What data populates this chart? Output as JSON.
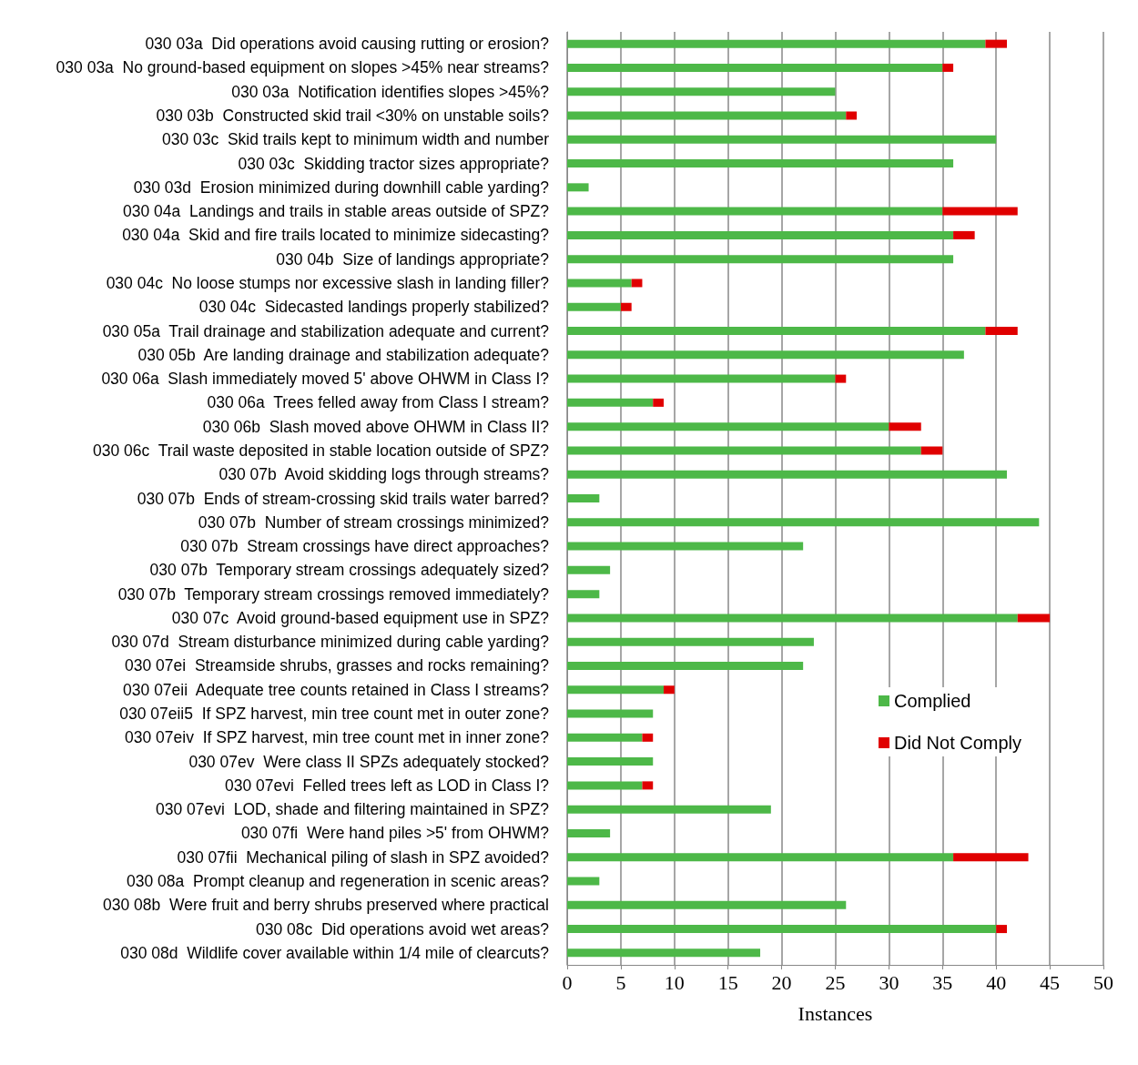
{
  "chart_data": {
    "type": "bar",
    "orientation": "horizontal",
    "stacked": true,
    "xlabel": "Instances",
    "categories": [
      "030 03a  Did operations avoid causing rutting or erosion?",
      "030 03a  No ground-based equipment on slopes >45% near streams?",
      "030 03a  Notification identifies slopes >45%?",
      "030 03b  Constructed skid trail <30% on unstable soils?",
      "030 03c  Skid trails kept to minimum width and number",
      "030 03c  Skidding tractor sizes appropriate?",
      "030 03d  Erosion minimized during downhill cable yarding?",
      "030 04a  Landings and trails in stable areas outside of SPZ?",
      "030 04a  Skid and fire trails located to minimize sidecasting?",
      "030 04b  Size of landings appropriate?",
      "030 04c  No loose stumps nor excessive slash in landing filler?",
      "030 04c  Sidecasted landings properly stabilized?",
      "030 05a  Trail drainage and stabilization adequate and current?",
      "030 05b  Are landing drainage and stabilization adequate?",
      "030 06a  Slash immediately moved 5' above OHWM in Class I?",
      "030 06a  Trees felled away from Class I stream?",
      "030 06b  Slash moved above OHWM in Class II?",
      "030 06c  Trail waste deposited in stable location outside of SPZ?",
      "030 07b  Avoid skidding logs through streams?",
      "030 07b  Ends of stream-crossing skid trails water barred?",
      "030 07b  Number of stream crossings minimized?",
      "030 07b  Stream crossings have direct approaches?",
      "030 07b  Temporary stream crossings adequately sized?",
      "030 07b  Temporary stream crossings removed immediately?",
      "030 07c  Avoid ground-based equipment use in SPZ?",
      "030 07d  Stream disturbance minimized during cable yarding?",
      "030 07ei  Streamside shrubs, grasses and rocks remaining?",
      "030 07eii  Adequate tree counts retained in Class I streams?",
      "030 07eii5  If SPZ harvest, min tree count met in outer zone?",
      "030 07eiv  If SPZ harvest, min tree count met in inner zone?",
      "030 07ev  Were class II SPZs adequately stocked?",
      "030 07evi  Felled trees left as LOD in Class I?",
      "030 07evi  LOD, shade and filtering maintained in SPZ?",
      "030 07fi  Were hand piles >5' from OHWM?",
      "030 07fii  Mechanical piling of slash in SPZ avoided?",
      "030 08a  Prompt cleanup and regeneration in scenic areas?",
      "030 08b  Were fruit and berry shrubs preserved where practical",
      "030 08c  Did operations avoid wet areas?",
      "030 08d  Wildlife cover available within 1/4 mile of clearcuts?"
    ],
    "series": [
      {
        "name": "Complied",
        "color": "#4db848",
        "values": [
          39,
          35,
          25,
          26,
          40,
          36,
          2,
          35,
          36,
          36,
          6,
          5,
          39,
          37,
          25,
          8,
          30,
          33,
          41,
          3,
          44,
          22,
          4,
          3,
          42,
          23,
          22,
          9,
          8,
          7,
          8,
          7,
          19,
          4,
          36,
          3,
          26,
          40,
          18
        ]
      },
      {
        "name": "Did Not Comply",
        "color": "#e00000",
        "values": [
          2,
          1,
          null,
          1,
          null,
          null,
          null,
          7,
          2,
          null,
          1,
          1,
          3,
          null,
          1,
          1,
          3,
          2,
          null,
          null,
          null,
          null,
          null,
          null,
          3,
          null,
          null,
          1,
          null,
          1,
          null,
          1,
          null,
          null,
          7,
          null,
          null,
          1,
          null
        ]
      }
    ],
    "xlim": [
      0,
      50
    ],
    "xticks": [
      0,
      5,
      10,
      15,
      20,
      25,
      30,
      35,
      40,
      45,
      50
    ],
    "grid": "x",
    "legend": "right"
  }
}
